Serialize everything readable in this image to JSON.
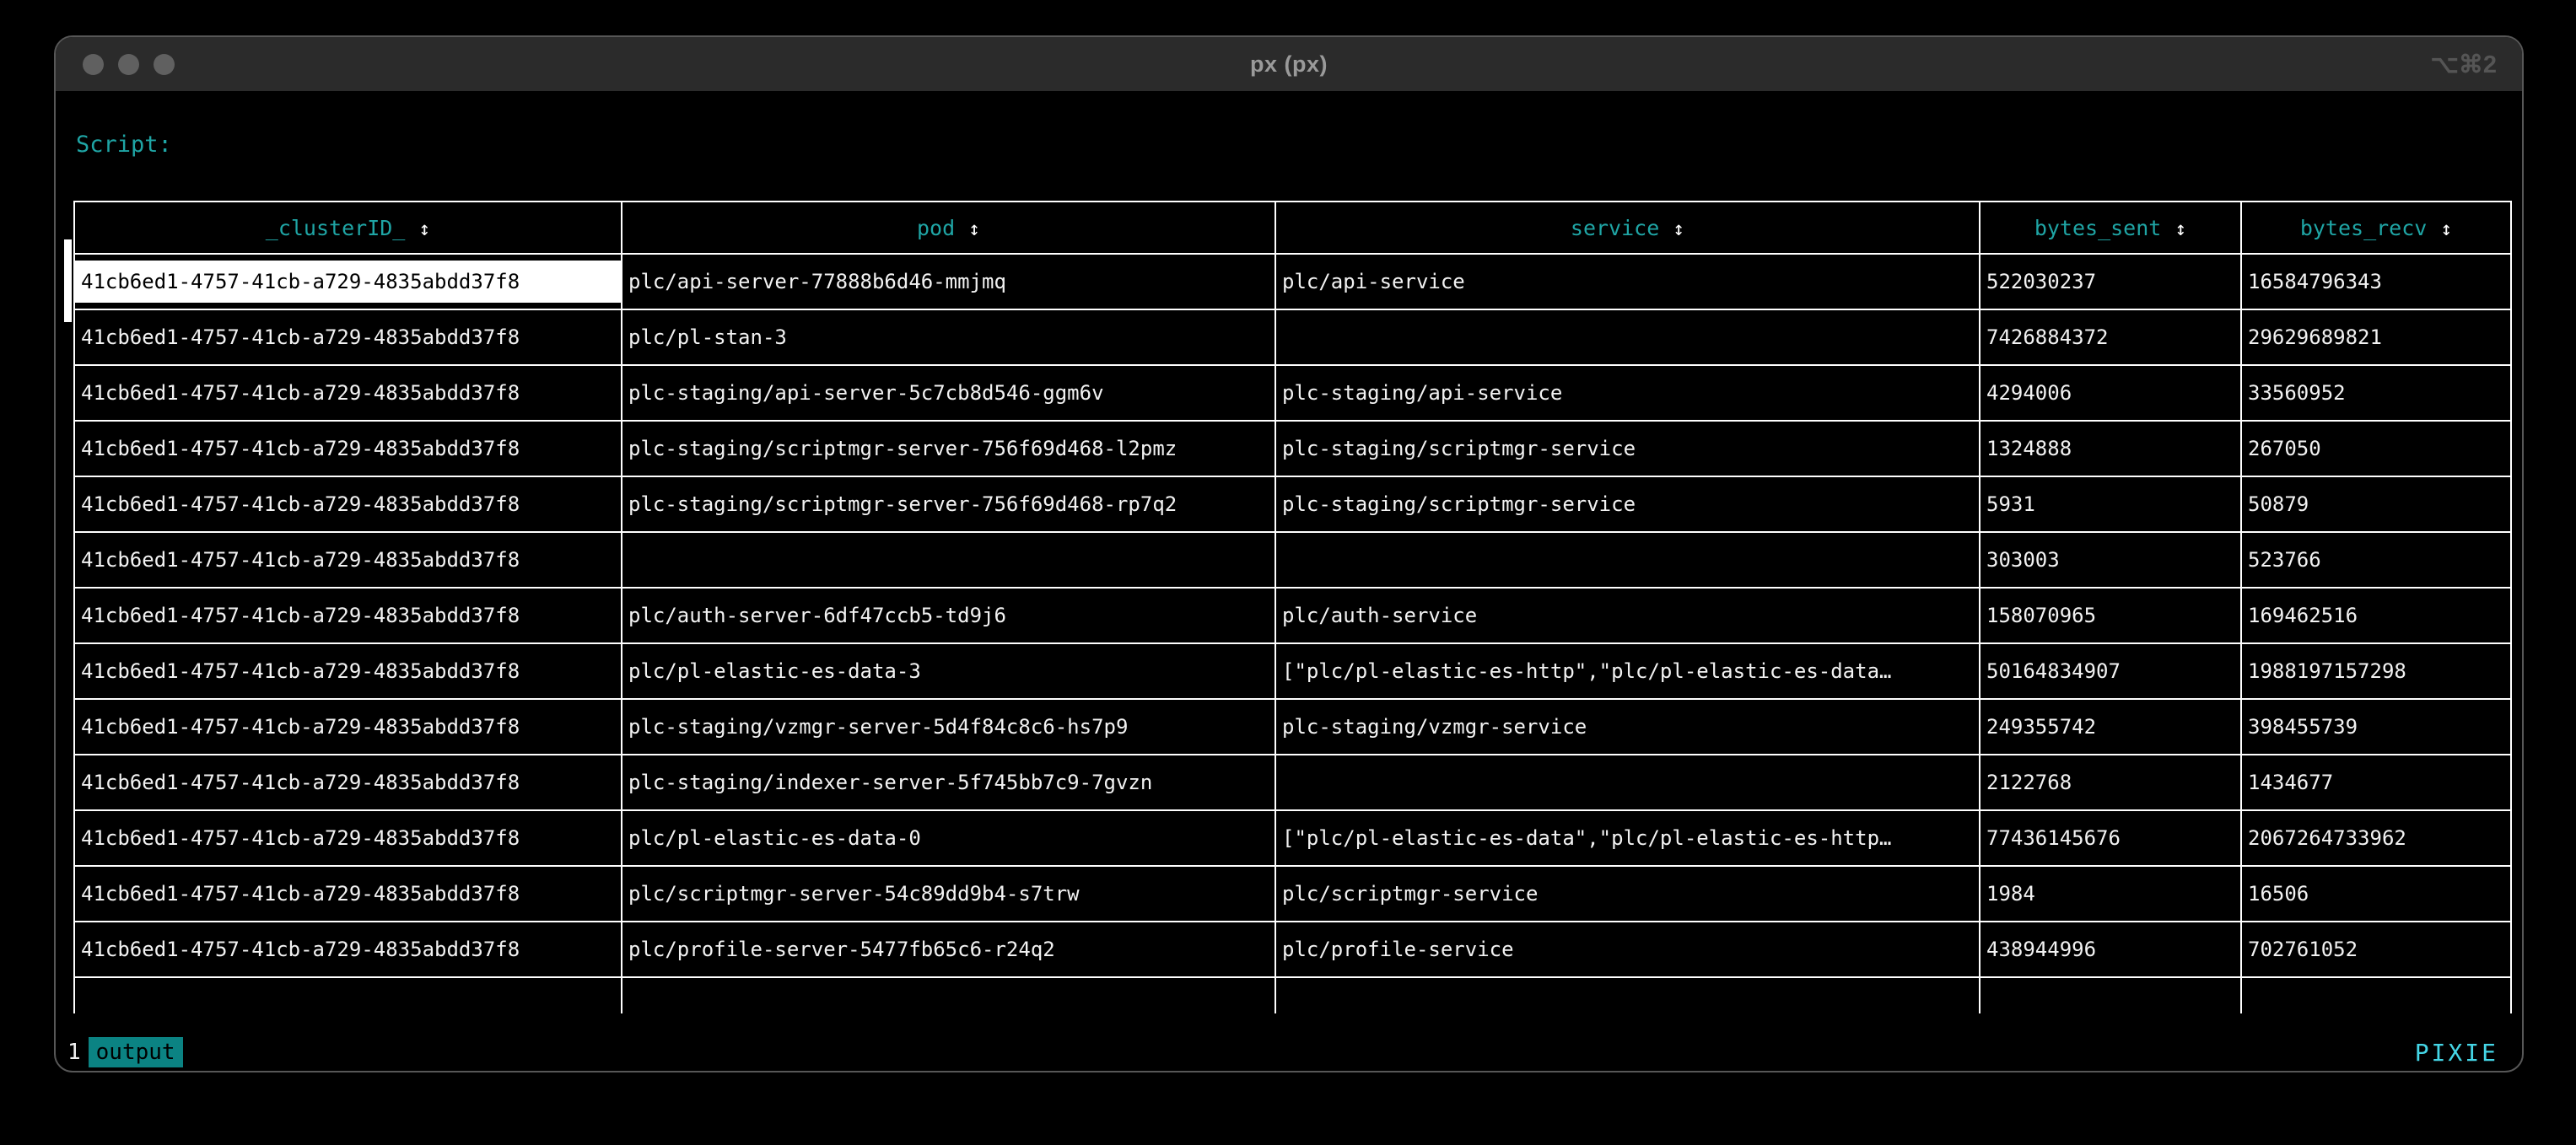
{
  "window": {
    "title": "px (px)",
    "shortcut_hint": "⌥⌘2",
    "traffic_lights": [
      "close",
      "minimize",
      "zoom"
    ]
  },
  "script_label": "Script:",
  "table": {
    "sort_icon": "↕",
    "columns": [
      {
        "label": "_clusterID_"
      },
      {
        "label": "pod"
      },
      {
        "label": "service"
      },
      {
        "label": "bytes_sent"
      },
      {
        "label": "bytes_recv"
      }
    ],
    "selected_cell": {
      "row": 0,
      "col": 0
    },
    "rows": [
      [
        "41cb6ed1-4757-41cb-a729-4835abdd37f8",
        "plc/api-server-77888b6d46-mmjmq",
        "plc/api-service",
        "522030237",
        "16584796343"
      ],
      [
        "41cb6ed1-4757-41cb-a729-4835abdd37f8",
        "plc/pl-stan-3",
        "",
        "7426884372",
        "29629689821"
      ],
      [
        "41cb6ed1-4757-41cb-a729-4835abdd37f8",
        "plc-staging/api-server-5c7cb8d546-ggm6v",
        "plc-staging/api-service",
        "4294006",
        "33560952"
      ],
      [
        "41cb6ed1-4757-41cb-a729-4835abdd37f8",
        "plc-staging/scriptmgr-server-756f69d468-l2pmz",
        "plc-staging/scriptmgr-service",
        "1324888",
        "267050"
      ],
      [
        "41cb6ed1-4757-41cb-a729-4835abdd37f8",
        "plc-staging/scriptmgr-server-756f69d468-rp7q2",
        "plc-staging/scriptmgr-service",
        "5931",
        "50879"
      ],
      [
        "41cb6ed1-4757-41cb-a729-4835abdd37f8",
        "",
        "",
        "303003",
        "523766"
      ],
      [
        "41cb6ed1-4757-41cb-a729-4835abdd37f8",
        "plc/auth-server-6df47ccb5-td9j6",
        "plc/auth-service",
        "158070965",
        "169462516"
      ],
      [
        "41cb6ed1-4757-41cb-a729-4835abdd37f8",
        "plc/pl-elastic-es-data-3",
        "[\"plc/pl-elastic-es-http\",\"plc/pl-elastic-es-data…",
        "50164834907",
        "1988197157298"
      ],
      [
        "41cb6ed1-4757-41cb-a729-4835abdd37f8",
        "plc-staging/vzmgr-server-5d4f84c8c6-hs7p9",
        "plc-staging/vzmgr-service",
        "249355742",
        "398455739"
      ],
      [
        "41cb6ed1-4757-41cb-a729-4835abdd37f8",
        "plc-staging/indexer-server-5f745bb7c9-7gvzn",
        "",
        "2122768",
        "1434677"
      ],
      [
        "41cb6ed1-4757-41cb-a729-4835abdd37f8",
        "plc/pl-elastic-es-data-0",
        "[\"plc/pl-elastic-es-data\",\"plc/pl-elastic-es-http…",
        "77436145676",
        "2067264733962"
      ],
      [
        "41cb6ed1-4757-41cb-a729-4835abdd37f8",
        "plc/scriptmgr-server-54c89dd9b4-s7trw",
        "plc/scriptmgr-service",
        "1984",
        "16506"
      ],
      [
        "41cb6ed1-4757-41cb-a729-4835abdd37f8",
        "plc/profile-server-5477fb65c6-r24q2",
        "plc/profile-service",
        "438944996",
        "702761052"
      ]
    ]
  },
  "statusbar": {
    "tab_number": "1",
    "tab_label": "output",
    "brand": "PIXIE"
  },
  "colors": {
    "accent_teal": "#1fa5a5",
    "brand_cyan": "#45d6e6",
    "tab_active_bg": "#0b8383",
    "table_border": "#ffffff",
    "row_text": "#f2f2f2",
    "selected_cell_bg": "#ffffff",
    "selected_cell_text": "#000000",
    "titlebar_bg": "#2b2b2b",
    "terminal_bg": "#000000"
  }
}
